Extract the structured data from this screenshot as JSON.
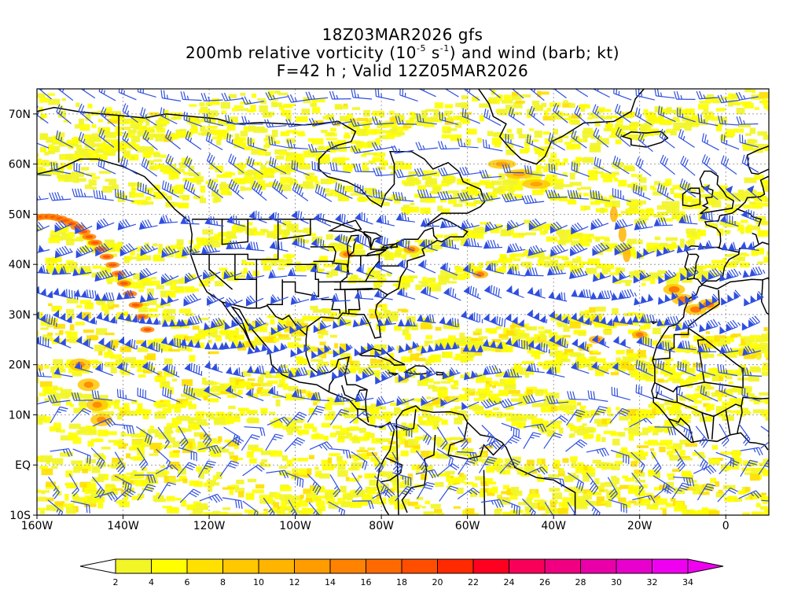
{
  "title": {
    "line1": "18Z03MAR2026 gfs",
    "line2_pre": "200mb relative vorticity (10",
    "line2_exp1": "-5",
    "line2_mid": " s",
    "line2_exp2": "-1",
    "line2_post": ") and wind (barb; kt)",
    "line3": "F=42 h ; Valid 12Z05MAR2026"
  },
  "map": {
    "lon_range": [
      -160,
      10
    ],
    "lat_range": [
      -10,
      75
    ],
    "lon_ticks": [
      {
        "value": -160,
        "label": "160W"
      },
      {
        "value": -140,
        "label": "140W"
      },
      {
        "value": -120,
        "label": "120W"
      },
      {
        "value": -100,
        "label": "100W"
      },
      {
        "value": -80,
        "label": "80W"
      },
      {
        "value": -60,
        "label": "60W"
      },
      {
        "value": -40,
        "label": "40W"
      },
      {
        "value": -20,
        "label": "20W"
      },
      {
        "value": 0,
        "label": "0"
      }
    ],
    "lat_ticks": [
      {
        "value": -10,
        "label": "10S"
      },
      {
        "value": 0,
        "label": "EQ"
      },
      {
        "value": 10,
        "label": "10N"
      },
      {
        "value": 20,
        "label": "20N"
      },
      {
        "value": 30,
        "label": "30N"
      },
      {
        "value": 40,
        "label": "40N"
      },
      {
        "value": 50,
        "label": "50N"
      },
      {
        "value": 60,
        "label": "60N"
      },
      {
        "value": 70,
        "label": "70N"
      }
    ],
    "barb_color": "#2f4fe0",
    "coast_color": "#000000"
  },
  "colorbar": {
    "levels": [
      "2",
      "4",
      "6",
      "8",
      "10",
      "12",
      "14",
      "16",
      "18",
      "20",
      "22",
      "24",
      "26",
      "28",
      "30",
      "32",
      "34"
    ],
    "colors": [
      "#f2f526",
      "#ffff00",
      "#ffe000",
      "#ffc800",
      "#ffb400",
      "#ff9c00",
      "#ff8200",
      "#ff6a00",
      "#ff4e00",
      "#ff2a00",
      "#ff0020",
      "#f8005a",
      "#f00080",
      "#ea00a8",
      "#e800cc",
      "#f000f0"
    ]
  }
}
